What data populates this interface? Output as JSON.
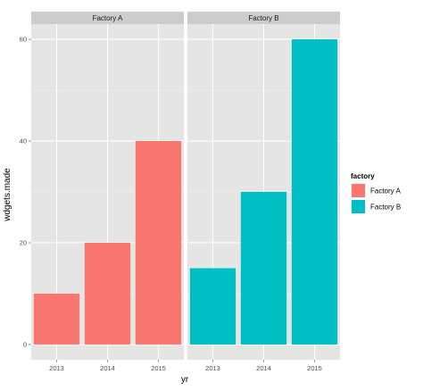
{
  "chart_data": {
    "type": "bar",
    "xlabel": "yr",
    "ylabel": "wdgets.made",
    "ylim": [
      -3,
      63
    ],
    "y_ticks": [
      0,
      20,
      40,
      60
    ],
    "grid": true,
    "legend_position": "right",
    "legend_title": "factory",
    "categories": [
      "2013",
      "2014",
      "2015"
    ],
    "facets": [
      {
        "label": "Factory A",
        "series": "Factory A",
        "color": "#F8766D",
        "values": [
          10,
          20,
          40
        ]
      },
      {
        "label": "Factory B",
        "series": "Factory B",
        "color": "#00BFC4",
        "values": [
          15,
          30,
          60
        ]
      }
    ],
    "legend": [
      {
        "label": "Factory A",
        "color": "#F8766D"
      },
      {
        "label": "Factory B",
        "color": "#00BFC4"
      }
    ],
    "colors": {
      "panel_bg": "#E5E5E5",
      "grid_major": "#FFFFFF",
      "grid_minor": "#F2F2F2",
      "strip_bg": "#CCCCCC",
      "bar_a": "#F8766D",
      "bar_b": "#00BFC4"
    }
  }
}
